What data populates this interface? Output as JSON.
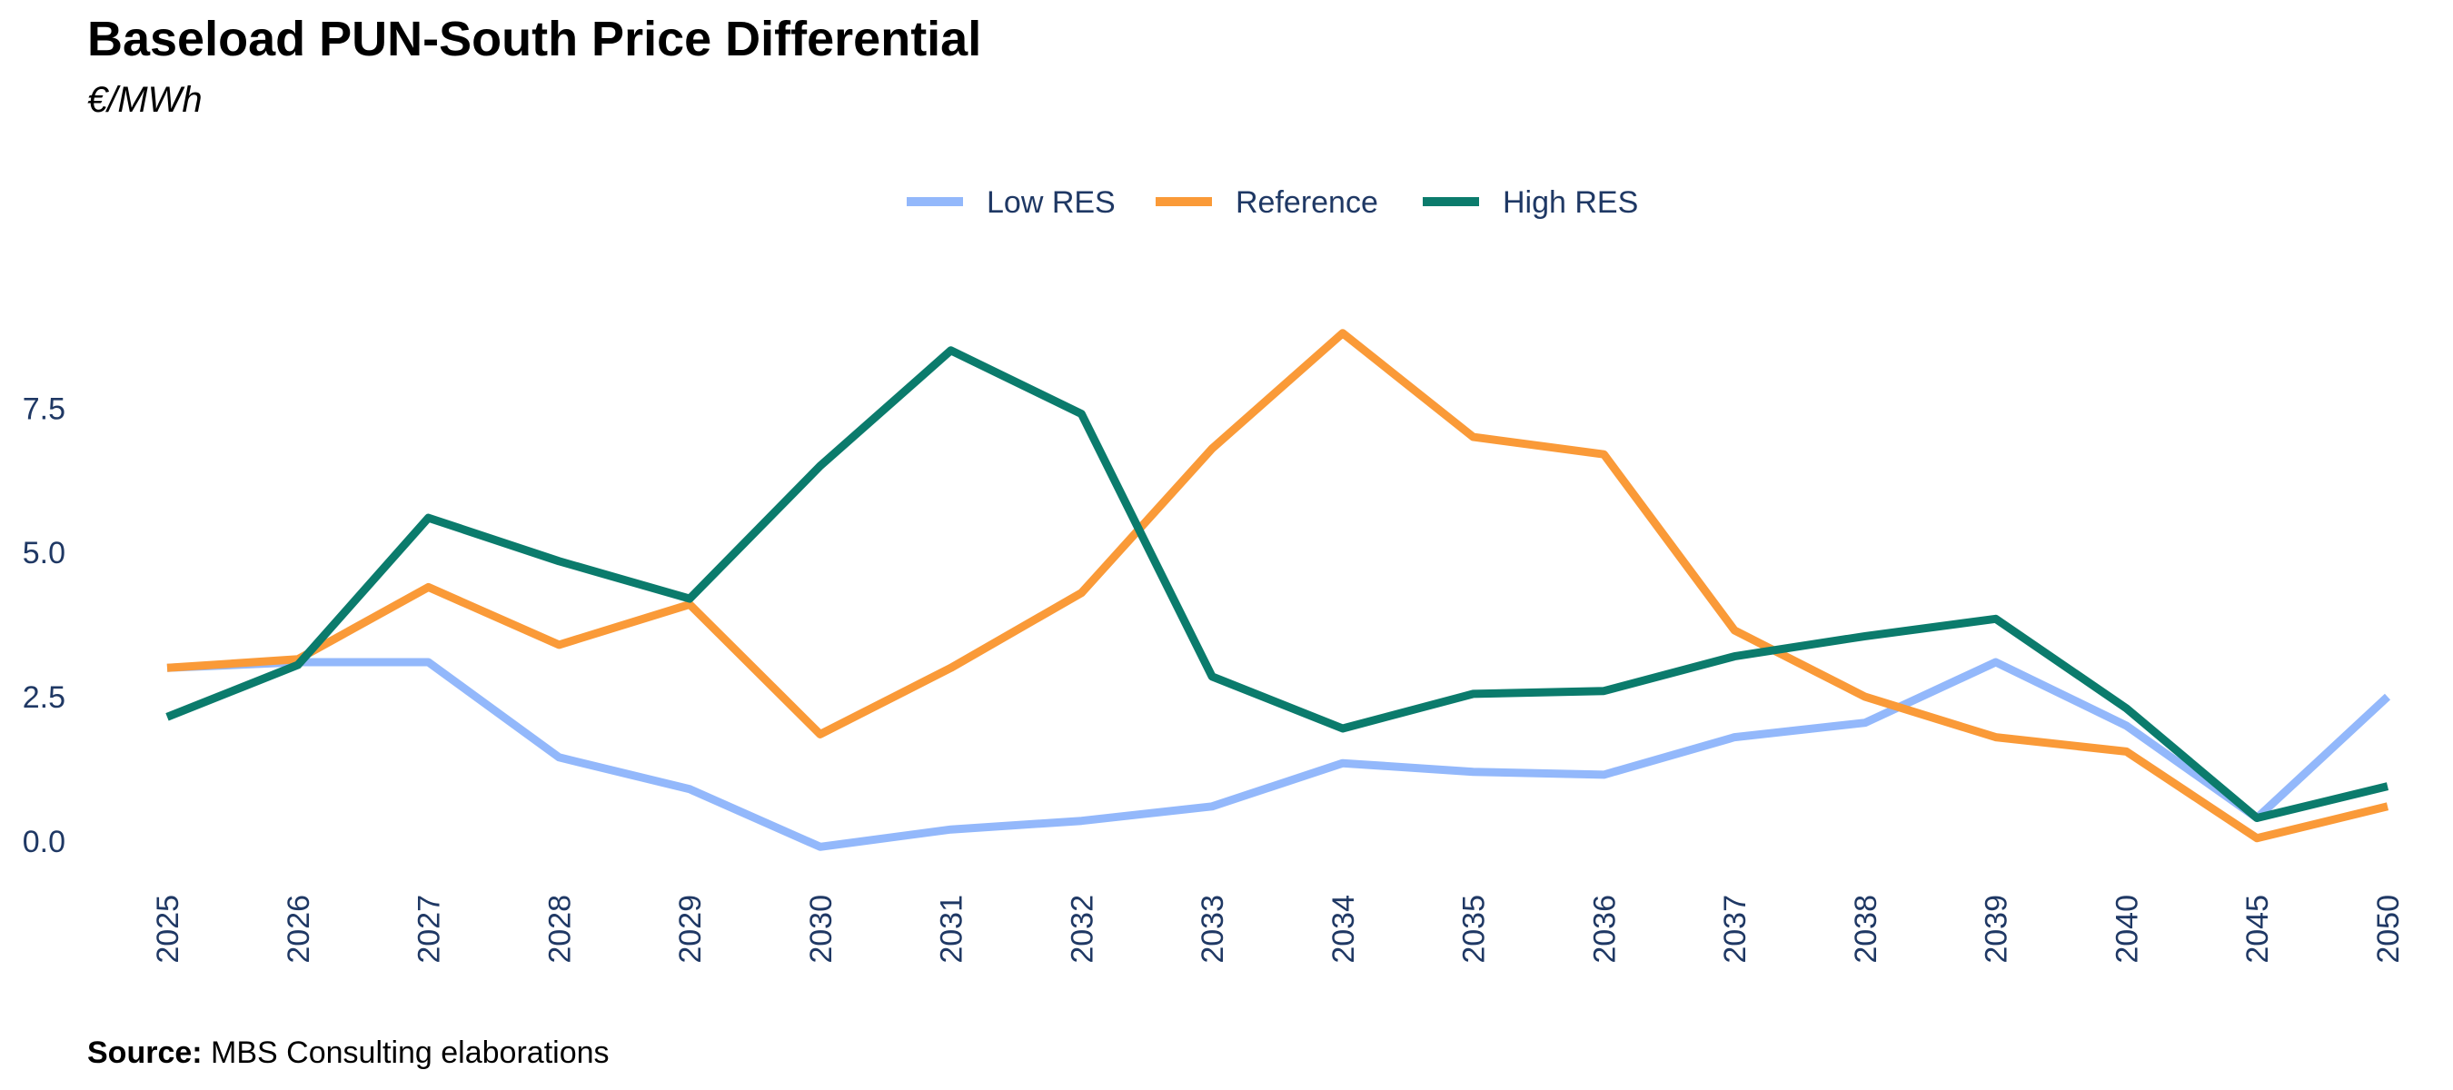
{
  "chart_data": {
    "type": "line",
    "title": "Baseload PUN-South Price Differential",
    "subtitle": "€/MWh",
    "source_label": "Source:",
    "source_text": "MBS Consulting elaborations",
    "categories": [
      "2025",
      "2026",
      "2027",
      "2028",
      "2029",
      "2030",
      "2031",
      "2032",
      "2033",
      "2034",
      "2035",
      "2036",
      "2037",
      "2038",
      "2039",
      "2040",
      "2045",
      "2050"
    ],
    "series": [
      {
        "name": "Low RES",
        "color": "#93b8fb",
        "values": [
          3.0,
          3.1,
          3.1,
          1.45,
          0.9,
          -0.1,
          0.2,
          0.35,
          0.6,
          1.35,
          1.2,
          1.15,
          1.8,
          2.05,
          3.1,
          2.0,
          0.4,
          2.5
        ]
      },
      {
        "name": "Reference",
        "color": "#fa9a38",
        "values": [
          3.0,
          3.15,
          4.4,
          3.4,
          4.1,
          1.85,
          3.0,
          4.3,
          6.8,
          8.8,
          7.0,
          6.7,
          3.65,
          2.5,
          1.8,
          1.55,
          0.05,
          0.6
        ]
      },
      {
        "name": "High RES",
        "color": "#0b7b6c",
        "values": [
          2.15,
          3.05,
          5.6,
          4.85,
          4.2,
          6.5,
          8.5,
          7.4,
          2.85,
          1.95,
          2.55,
          2.6,
          3.2,
          3.55,
          3.85,
          2.3,
          0.4,
          0.95
        ]
      }
    ],
    "yticks": [
      "0.0",
      "2.5",
      "5.0",
      "7.5"
    ],
    "ytick_values": [
      0,
      2.5,
      5,
      7.5
    ],
    "ylim": [
      -0.3,
      9.3
    ],
    "legend_position": "top-center",
    "grid": false
  }
}
